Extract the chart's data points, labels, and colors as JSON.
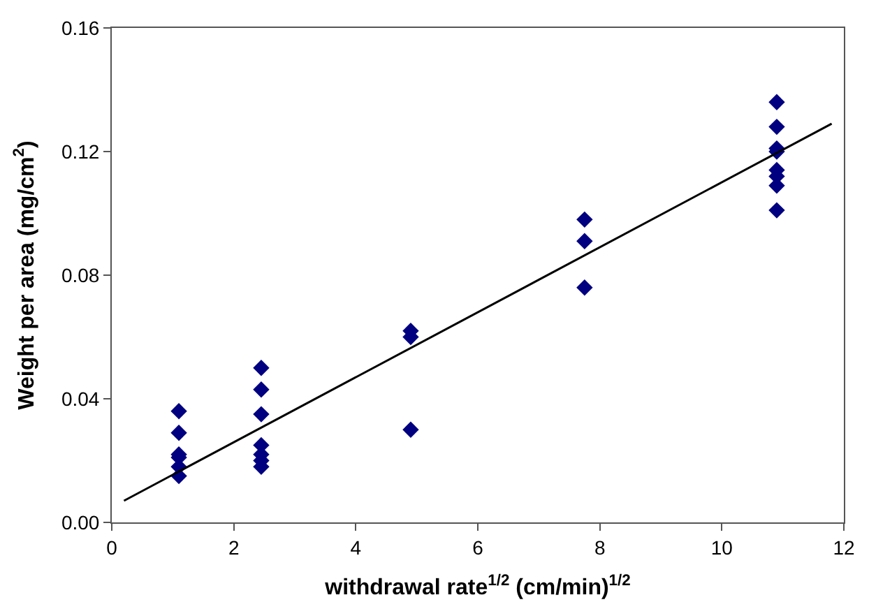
{
  "chart_data": {
    "type": "scatter",
    "xlabel": "withdrawal rate$^{1/2}$ (cm/min)$^{1/2}$",
    "ylabel": "Weight per area (mg/cm$^{2}$)",
    "xlim": [
      0,
      12
    ],
    "ylim": [
      0,
      0.16
    ],
    "xticks": [
      0,
      2,
      4,
      6,
      8,
      10,
      12
    ],
    "yticks": [
      {
        "value": 0,
        "label": "0.00"
      },
      {
        "value": 0.04,
        "label": "0.04"
      },
      {
        "value": 0.08,
        "label": "0.08"
      },
      {
        "value": 0.12,
        "label": "0.12"
      },
      {
        "value": 0.16,
        "label": "0.16"
      }
    ],
    "marker": "diamond",
    "series": [
      {
        "color": "#000080",
        "x": [
          1.1,
          1.1,
          1.1,
          1.1,
          1.1,
          1.1,
          2.45,
          2.45,
          2.45,
          2.45,
          2.45,
          2.45,
          2.45,
          4.9,
          4.9,
          4.9,
          7.75,
          7.75,
          7.75,
          10.9,
          10.9,
          10.9,
          10.9,
          10.9,
          10.9,
          10.9,
          10.9
        ],
        "values": [
          0.036,
          0.029,
          0.022,
          0.021,
          0.018,
          0.015,
          0.05,
          0.043,
          0.035,
          0.025,
          0.022,
          0.02,
          0.018,
          0.062,
          0.06,
          0.03,
          0.098,
          0.091,
          0.076,
          0.136,
          0.128,
          0.121,
          0.12,
          0.114,
          0.112,
          0.109,
          0.101
        ]
      },
      {
        "type": "line",
        "color": "#000000",
        "x": [
          0.2,
          11.8
        ],
        "values": [
          0.007,
          0.129
        ],
        "marker": "none",
        "line_style": "solid"
      }
    ]
  }
}
